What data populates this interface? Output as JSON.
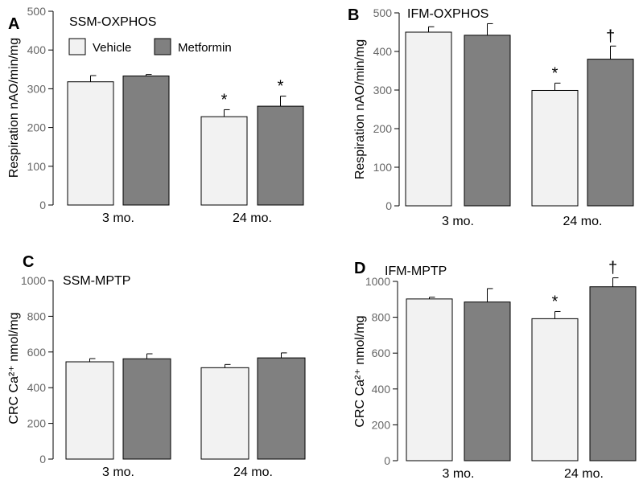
{
  "colors": {
    "vehicle": "#f2f2f2",
    "metformin": "#808080",
    "stroke": "#000000",
    "tick_text": "#666666"
  },
  "legend": {
    "entries": [
      "Vehicle",
      "Metformin"
    ]
  },
  "chart_data": [
    {
      "type": "bar",
      "letter": "A",
      "title": "SSM-OXPHOS",
      "ylabel": "Respiration nAO/min/mg",
      "ylim": [
        0,
        500
      ],
      "yticks": [
        0,
        100,
        200,
        300,
        400,
        500
      ],
      "categories": [
        "3 mo.",
        "24 mo."
      ],
      "series": [
        {
          "name": "Vehicle",
          "values": [
            318,
            228
          ],
          "errors": [
            16,
            18
          ],
          "annotations": [
            "",
            "*"
          ]
        },
        {
          "name": "Metformin",
          "values": [
            333,
            255
          ],
          "errors": [
            4,
            26
          ],
          "annotations": [
            "",
            "*"
          ]
        }
      ]
    },
    {
      "type": "bar",
      "letter": "B",
      "title": "IFM-OXPHOS",
      "ylabel": "Respiration nAO/min/mg",
      "ylim": [
        0,
        500
      ],
      "yticks": [
        0,
        100,
        200,
        300,
        400,
        500
      ],
      "categories": [
        "3 mo.",
        "24 mo."
      ],
      "series": [
        {
          "name": "Vehicle",
          "values": [
            450,
            299
          ],
          "errors": [
            14,
            19
          ],
          "annotations": [
            "",
            "*"
          ]
        },
        {
          "name": "Metformin",
          "values": [
            442,
            380
          ],
          "errors": [
            30,
            34
          ],
          "annotations": [
            "",
            "†"
          ]
        }
      ]
    },
    {
      "type": "bar",
      "letter": "C",
      "title": "SSM-MPTP",
      "ylabel": "CRC Ca²⁺ nmol/mg",
      "ylim": [
        0,
        1000
      ],
      "yticks": [
        0,
        200,
        400,
        600,
        800,
        1000
      ],
      "categories": [
        "3 mo.",
        "24 mo."
      ],
      "series": [
        {
          "name": "Vehicle",
          "values": [
            545,
            512
          ],
          "errors": [
            18,
            18
          ],
          "annotations": [
            "",
            ""
          ]
        },
        {
          "name": "Metformin",
          "values": [
            562,
            567
          ],
          "errors": [
            28,
            28
          ],
          "annotations": [
            "",
            ""
          ]
        }
      ]
    },
    {
      "type": "bar",
      "letter": "D",
      "title": "IFM-MPTP",
      "ylabel": "CRC Ca²⁺ nmol/mg",
      "ylim": [
        0,
        1000
      ],
      "yticks": [
        0,
        200,
        400,
        600,
        800,
        1000
      ],
      "categories": [
        "3 mo.",
        "24 mo."
      ],
      "series": [
        {
          "name": "Vehicle",
          "values": [
            902,
            792
          ],
          "errors": [
            10,
            40
          ],
          "annotations": [
            "",
            "*"
          ]
        },
        {
          "name": "Metformin",
          "values": [
            885,
            970
          ],
          "errors": [
            75,
            50
          ],
          "annotations": [
            "",
            "†"
          ]
        }
      ]
    }
  ]
}
